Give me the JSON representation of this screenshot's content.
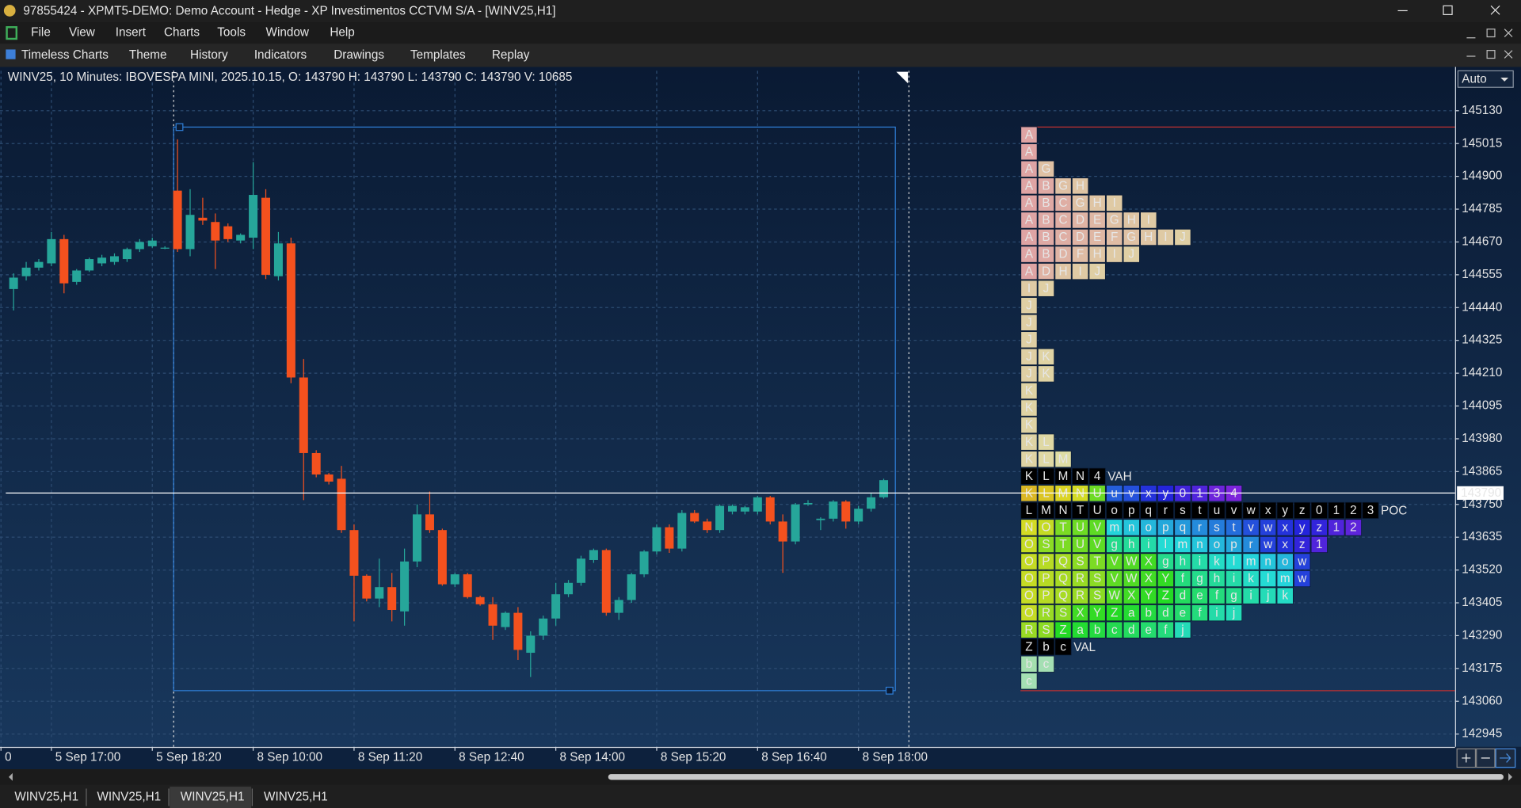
{
  "window": {
    "title": "97855424 - XPMT5-DEMO: Demo Account - Hedge - XP Investimentos CCTVM S/A - [WINV25,H1]"
  },
  "menu": [
    "File",
    "View",
    "Insert",
    "Charts",
    "Tools",
    "Window",
    "Help"
  ],
  "toolbar": [
    "Timeless Charts",
    "Theme",
    "History",
    "Indicators",
    "Drawings",
    "Templates",
    "Replay"
  ],
  "chart_data": {
    "type": "candlestick",
    "title": "WINV25, 10 Minutes: IBOVESPA MINI, 2025.10.15, O: 143790 H: 143790 L: 143790 C: 143790 V: 10685",
    "scale_mode": "Auto",
    "open": [
      144505,
      144550,
      144580,
      144595,
      144680,
      144530,
      144570,
      144595,
      144600,
      144610,
      144645,
      144655,
      144650,
      144850,
      144645,
      144755,
      144740,
      144725,
      144675,
      144685,
      144825,
      144550,
      144665,
      144195,
      143930,
      143855,
      143840,
      143660,
      143500,
      143420,
      143460,
      143375,
      143550,
      143715,
      143660,
      143470,
      143505,
      143425,
      143400,
      143320,
      143370,
      143230,
      143290,
      143350,
      143435,
      143475,
      143555,
      143590,
      143370,
      143415,
      143505,
      143585,
      143670,
      143595,
      143720,
      143690,
      143660,
      143725,
      143725,
      143725,
      143775,
      143690,
      143620,
      143750,
      143695,
      143700,
      143760,
      143690,
      143735,
      143775
    ],
    "high": [
      144560,
      144600,
      144610,
      144705,
      144695,
      144575,
      144615,
      144625,
      144630,
      144650,
      144680,
      144685,
      144655,
      145030,
      144855,
      144825,
      144770,
      144735,
      144700,
      144950,
      144855,
      144705,
      144685,
      144260,
      143940,
      143860,
      143885,
      143680,
      143505,
      143560,
      143510,
      143595,
      143750,
      143795,
      143665,
      143510,
      143510,
      143430,
      143425,
      143375,
      143390,
      143305,
      143360,
      143475,
      143485,
      143570,
      143595,
      143595,
      143425,
      143510,
      143590,
      143680,
      143680,
      143730,
      143730,
      143700,
      143750,
      143750,
      143745,
      143780,
      143780,
      143715,
      143755,
      143765,
      143705,
      143765,
      143765,
      143745,
      143790,
      143840
    ],
    "low": [
      144430,
      144535,
      144570,
      144585,
      144490,
      144520,
      144565,
      144585,
      144590,
      144600,
      144635,
      144650,
      144645,
      144635,
      144620,
      144730,
      144575,
      144670,
      144665,
      144645,
      144540,
      144535,
      144175,
      143765,
      143845,
      143820,
      143650,
      143340,
      143410,
      143390,
      143340,
      143325,
      143530,
      143650,
      143465,
      143460,
      143420,
      143395,
      143275,
      143310,
      143205,
      143145,
      143275,
      143325,
      143425,
      143465,
      143545,
      143360,
      143345,
      143405,
      143495,
      143575,
      143580,
      143585,
      143685,
      143650,
      143650,
      143715,
      143715,
      143715,
      143680,
      143510,
      143610,
      143745,
      143660,
      143690,
      143665,
      143680,
      143725,
      143770
    ],
    "close": [
      144545,
      144580,
      144600,
      144680,
      144525,
      144570,
      144610,
      144615,
      144620,
      144645,
      144670,
      144675,
      144650,
      144645,
      144765,
      144745,
      144675,
      144680,
      144695,
      144835,
      144555,
      144665,
      144195,
      143930,
      143855,
      143830,
      143660,
      143500,
      143420,
      143460,
      143380,
      143550,
      143715,
      143660,
      143470,
      143505,
      143425,
      143400,
      143325,
      143370,
      143240,
      143290,
      143350,
      143435,
      143475,
      143560,
      143590,
      143370,
      143415,
      143505,
      143585,
      143670,
      143595,
      143720,
      143690,
      143660,
      143745,
      143745,
      143740,
      143775,
      143690,
      143620,
      143750,
      143755,
      143700,
      143760,
      143690,
      143735,
      143775,
      143835
    ],
    "up_color": "#26a69a",
    "down_color": "#f4511e",
    "xticks": [
      {
        "value": -1,
        "label": "0"
      },
      {
        "value": 3,
        "label": "5 Sep 17:00"
      },
      {
        "value": 11,
        "label": "5 Sep 18:20"
      },
      {
        "value": 19,
        "label": "8 Sep 10:00"
      },
      {
        "value": 27,
        "label": "8 Sep 11:20"
      },
      {
        "value": 35,
        "label": "8 Sep 12:40"
      },
      {
        "value": 43,
        "label": "8 Sep 14:00"
      },
      {
        "value": 51,
        "label": "8 Sep 15:20"
      },
      {
        "value": 59,
        "label": "8 Sep 16:40"
      },
      {
        "value": 67,
        "label": "8 Sep 18:00"
      }
    ],
    "ylim": [
      142900,
      145270
    ],
    "yticks": [
      145130,
      145015,
      144900,
      144785,
      144670,
      144555,
      144440,
      144325,
      144210,
      144095,
      143980,
      143865,
      143750,
      143635,
      143520,
      143405,
      143290,
      143175,
      143060,
      142945
    ],
    "grid": true,
    "crosshair_price": 143790,
    "profile": {
      "rows": [
        {
          "letters": [
            "A"
          ]
        },
        {
          "letters": [
            "A"
          ]
        },
        {
          "letters": [
            "A",
            "G"
          ]
        },
        {
          "letters": [
            "A",
            "B",
            "G",
            "H"
          ]
        },
        {
          "letters": [
            "A",
            "B",
            "C",
            "G",
            "H",
            "I"
          ]
        },
        {
          "letters": [
            "A",
            "B",
            "C",
            "D",
            "E",
            "G",
            "H",
            "I"
          ]
        },
        {
          "letters": [
            "A",
            "B",
            "C",
            "D",
            "E",
            "F",
            "G",
            "H",
            "I",
            "J"
          ]
        },
        {
          "letters": [
            "A",
            "B",
            "D",
            "F",
            "H",
            "I",
            "J"
          ]
        },
        {
          "letters": [
            "A",
            "D",
            "H",
            "I",
            "J"
          ]
        },
        {
          "letters": [
            "I",
            "J"
          ]
        },
        {
          "letters": [
            "J"
          ]
        },
        {
          "letters": [
            "J"
          ]
        },
        {
          "letters": [
            "J"
          ]
        },
        {
          "letters": [
            "J",
            "K"
          ]
        },
        {
          "letters": [
            "J",
            "K"
          ]
        },
        {
          "letters": [
            "K"
          ]
        },
        {
          "letters": [
            "K"
          ]
        },
        {
          "letters": [
            "K"
          ]
        },
        {
          "letters": [
            "K",
            "L"
          ]
        },
        {
          "letters": [
            "K",
            "L",
            "M"
          ]
        },
        {
          "letters": [
            "K",
            "L",
            "M",
            "N",
            "4"
          ],
          "marker": "VAH"
        },
        {
          "letters": [
            "K",
            "L",
            "M",
            "N",
            "U",
            "u",
            "v",
            "x",
            "y",
            "0",
            "1",
            "3",
            "4"
          ]
        },
        {
          "letters": [
            "L",
            "M",
            "N",
            "T",
            "U",
            "o",
            "p",
            "q",
            "r",
            "s",
            "t",
            "u",
            "v",
            "w",
            "x",
            "y",
            "z",
            "0",
            "1",
            "2",
            "3"
          ],
          "marker": "POC"
        },
        {
          "letters": [
            "N",
            "O",
            "T",
            "U",
            "V",
            "m",
            "n",
            "o",
            "p",
            "q",
            "r",
            "s",
            "t",
            "v",
            "w",
            "x",
            "y",
            "z",
            "1",
            "2"
          ]
        },
        {
          "letters": [
            "O",
            "S",
            "T",
            "U",
            "V",
            "g",
            "h",
            "i",
            "l",
            "m",
            "n",
            "o",
            "p",
            "r",
            "w",
            "x",
            "z",
            "1"
          ]
        },
        {
          "letters": [
            "O",
            "P",
            "Q",
            "S",
            "T",
            "V",
            "W",
            "X",
            "g",
            "h",
            "i",
            "k",
            "l",
            "m",
            "n",
            "o",
            "w"
          ]
        },
        {
          "letters": [
            "O",
            "P",
            "Q",
            "R",
            "S",
            "V",
            "W",
            "X",
            "Y",
            "f",
            "g",
            "h",
            "i",
            "k",
            "l",
            "m",
            "w"
          ]
        },
        {
          "letters": [
            "O",
            "P",
            "Q",
            "R",
            "S",
            "W",
            "X",
            "Y",
            "Z",
            "d",
            "e",
            "f",
            "g",
            "i",
            "j",
            "k"
          ]
        },
        {
          "letters": [
            "O",
            "R",
            "S",
            "X",
            "Y",
            "Z",
            "a",
            "b",
            "d",
            "e",
            "f",
            "i",
            "j"
          ]
        },
        {
          "letters": [
            "R",
            "S",
            "Z",
            "a",
            "b",
            "c",
            "d",
            "e",
            "f",
            "j"
          ]
        },
        {
          "letters": [
            "Z",
            "b",
            "c"
          ],
          "marker": "VAL"
        },
        {
          "letters": [
            "b",
            "c"
          ]
        },
        {
          "letters": [
            "c"
          ]
        }
      ]
    }
  },
  "tabs": [
    "WINV25,H1",
    "WINV25,H1",
    "WINV25,H1",
    "WINV25,H1"
  ]
}
